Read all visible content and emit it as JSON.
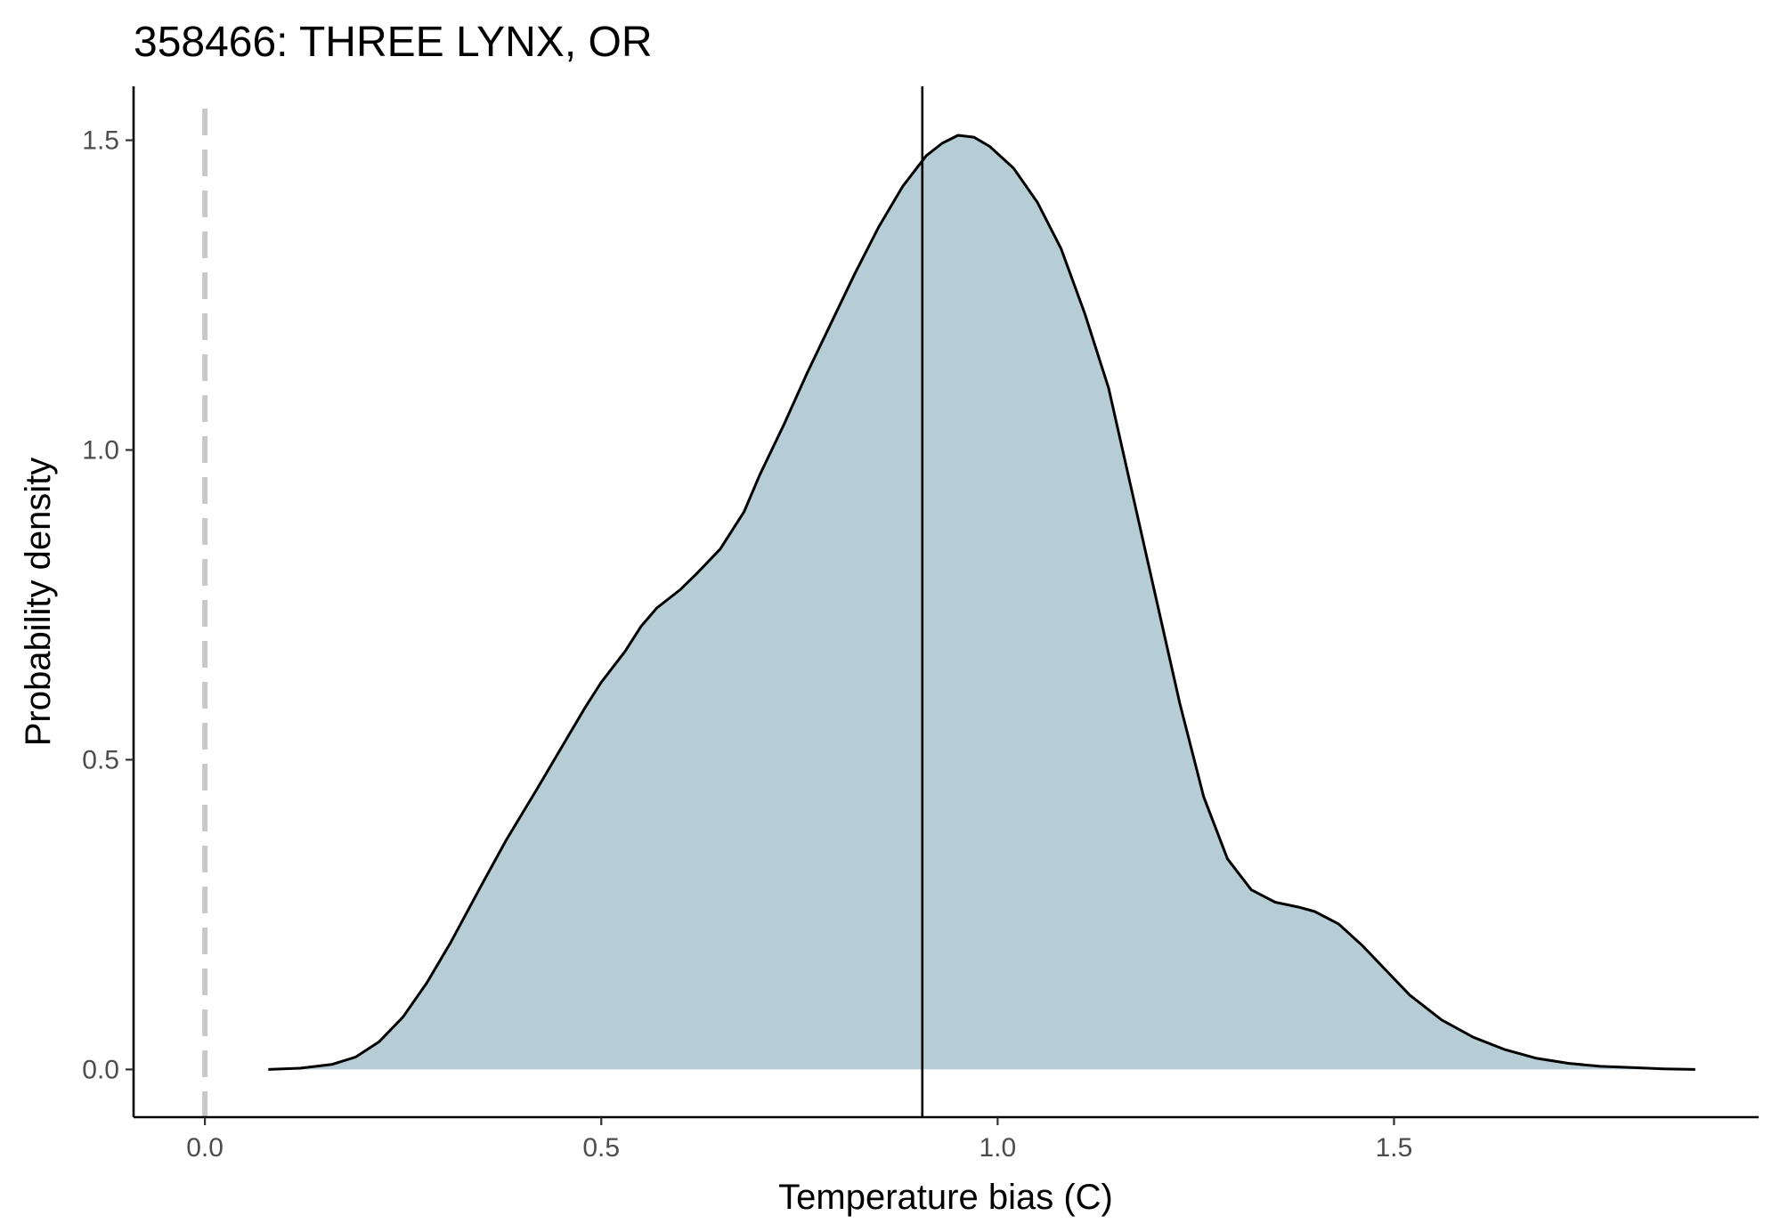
{
  "chart_data": {
    "type": "area",
    "title": "358466: THREE LYNX, OR",
    "xlabel": "Temperature bias (C)",
    "ylabel": "Probability density",
    "xlim": [
      -0.09,
      1.96
    ],
    "ylim": [
      -0.077,
      1.587
    ],
    "x_ticks": [
      0.0,
      0.5,
      1.0,
      1.5
    ],
    "x_tick_labels": [
      "0.0",
      "0.5",
      "1.0",
      "1.5"
    ],
    "y_ticks": [
      0.0,
      0.5,
      1.0,
      1.5
    ],
    "y_tick_labels": [
      "0.0",
      "0.5",
      "1.0",
      "1.5"
    ],
    "grid": false,
    "legend": "none",
    "reference_lines": [
      {
        "x": 0.0,
        "style": "dashed",
        "color": "#c8c8c8"
      },
      {
        "x": 0.905,
        "style": "solid",
        "color": "#000000"
      }
    ],
    "fill_color": "#b7cdd5",
    "line_color": "#000000",
    "series": [
      {
        "x": [
          0.08,
          0.12,
          0.16,
          0.19,
          0.22,
          0.25,
          0.28,
          0.31,
          0.35,
          0.38,
          0.42,
          0.45,
          0.48,
          0.5,
          0.53,
          0.55,
          0.57,
          0.6,
          0.62,
          0.65,
          0.68,
          0.7,
          0.73,
          0.76,
          0.79,
          0.82,
          0.85,
          0.88,
          0.91,
          0.93,
          0.95,
          0.97,
          0.99,
          1.02,
          1.05,
          1.08,
          1.11,
          1.14,
          1.17,
          1.2,
          1.23,
          1.26,
          1.29,
          1.32,
          1.35,
          1.38,
          1.4,
          1.43,
          1.46,
          1.49,
          1.52,
          1.56,
          1.6,
          1.64,
          1.68,
          1.72,
          1.76,
          1.8,
          1.84,
          1.88
        ],
        "y": [
          0.0,
          0.002,
          0.008,
          0.02,
          0.045,
          0.085,
          0.14,
          0.205,
          0.3,
          0.37,
          0.455,
          0.52,
          0.585,
          0.625,
          0.675,
          0.715,
          0.745,
          0.775,
          0.8,
          0.84,
          0.9,
          0.96,
          1.04,
          1.125,
          1.205,
          1.285,
          1.36,
          1.425,
          1.475,
          1.495,
          1.508,
          1.505,
          1.49,
          1.455,
          1.4,
          1.325,
          1.22,
          1.1,
          0.93,
          0.76,
          0.59,
          0.44,
          0.34,
          0.29,
          0.27,
          0.262,
          0.255,
          0.235,
          0.2,
          0.16,
          0.12,
          0.08,
          0.052,
          0.032,
          0.018,
          0.01,
          0.005,
          0.003,
          0.001,
          0.0
        ]
      }
    ]
  }
}
